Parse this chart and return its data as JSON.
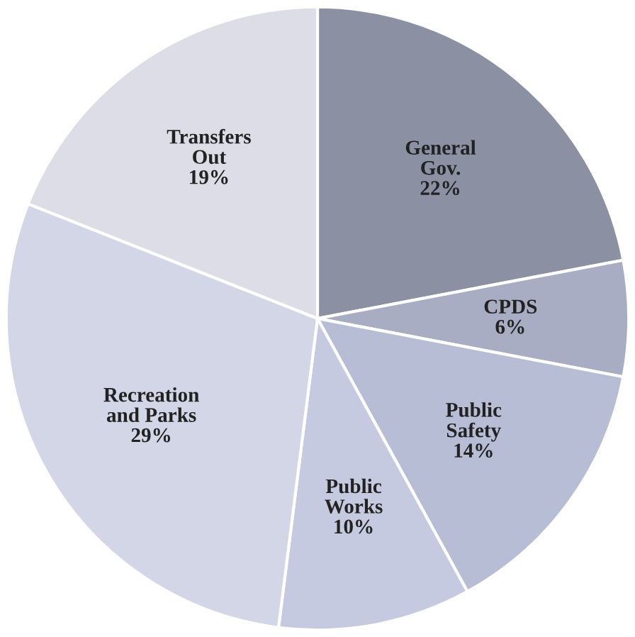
{
  "chart_data": {
    "type": "pie",
    "categories": [
      "General\nGov.",
      "CPDS",
      "Public\nSafety",
      "Public\nWorks",
      "Recreation\nand Parks",
      "Transfers\nOut"
    ],
    "values": [
      22,
      6,
      14,
      10,
      29,
      19
    ],
    "value_labels": [
      "22%",
      "6%",
      "14%",
      "10%",
      "29%",
      "19%"
    ],
    "colors": [
      "#8c90a3",
      "#a8adc4",
      "#b8bdd6",
      "#c6cae0",
      "#d3d6e6",
      "#dcdde7"
    ]
  }
}
